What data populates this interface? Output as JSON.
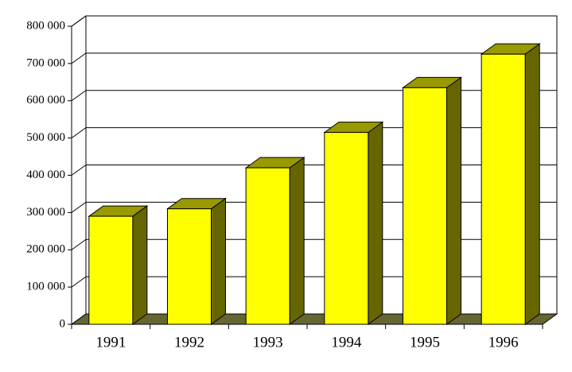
{
  "chart_data": {
    "type": "bar3d",
    "categories": [
      "1991",
      "1992",
      "1993",
      "1994",
      "1995",
      "1996"
    ],
    "values": [
      290000,
      310000,
      420000,
      515000,
      635000,
      725000
    ],
    "color": "#ffff00",
    "side_color": "#666600",
    "top_color": "#999900",
    "floor_color": "#666633",
    "ylim": [
      0,
      800000
    ],
    "yticks": [
      0,
      {
        "value": 100000,
        "label": "100 000"
      },
      {
        "value": 200000,
        "label": "200 000"
      },
      {
        "value": 300000,
        "label": "300 000"
      },
      {
        "value": 400000,
        "label": "400 000"
      },
      {
        "value": 500000,
        "label": "500 000"
      },
      {
        "value": 600000,
        "label": "600 000"
      },
      {
        "value": 700000,
        "label": "700 000"
      },
      {
        "value": 800000,
        "label": "800 000"
      }
    ],
    "grid": true
  }
}
